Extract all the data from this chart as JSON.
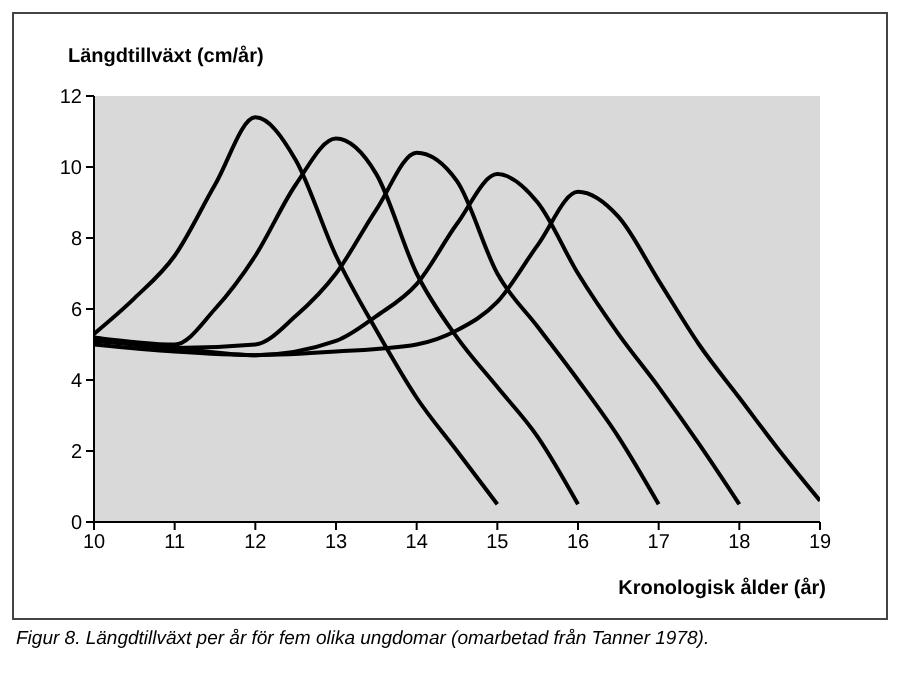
{
  "chart_data": {
    "type": "line",
    "ylabel": "Längdtillväxt (cm/år)",
    "xlabel": "Kronologisk ålder (år)",
    "annotations": [
      "Figur 8. Längdtillväxt per år för fem olika ungdomar (omarbetad från Tanner 1978)."
    ],
    "xlim": [
      10,
      19
    ],
    "xticks": [
      10,
      11,
      12,
      13,
      14,
      15,
      16,
      17,
      18,
      19
    ],
    "ylim": [
      0,
      12
    ],
    "yticks": [
      0,
      2,
      4,
      6,
      8,
      10,
      12
    ],
    "grid": false,
    "marker": "none",
    "line_style": "solid",
    "series": [
      {
        "color": "#000000",
        "x": [
          10,
          10.5,
          11,
          11.5,
          12,
          12.5,
          13,
          13.5,
          14,
          14.5,
          15
        ],
        "values": [
          5.3,
          6.3,
          7.5,
          9.5,
          11.4,
          10.2,
          7.5,
          5.4,
          3.5,
          2,
          0.5
        ]
      },
      {
        "color": "#000000",
        "x": [
          10,
          11,
          11.5,
          12,
          12.5,
          13,
          13.5,
          14,
          14.5,
          15,
          15.5,
          16
        ],
        "values": [
          5.2,
          5,
          6,
          7.5,
          9.5,
          10.8,
          9.8,
          7,
          5.2,
          3.8,
          2.4,
          0.5
        ]
      },
      {
        "color": "#000000",
        "x": [
          10,
          11,
          12,
          12.5,
          13,
          13.5,
          14,
          14.5,
          15,
          15.5,
          16,
          16.5,
          17
        ],
        "values": [
          5.2,
          4.9,
          5,
          5.8,
          7,
          8.8,
          10.4,
          9.6,
          7,
          5.5,
          4,
          2.4,
          0.5
        ]
      },
      {
        "color": "#000000",
        "x": [
          10,
          11,
          12,
          13,
          13.5,
          14,
          14.5,
          15,
          15.5,
          16,
          16.5,
          17,
          17.5,
          18
        ],
        "values": [
          5.1,
          4.9,
          4.7,
          5.1,
          5.8,
          6.7,
          8.4,
          9.8,
          9,
          7,
          5.3,
          3.8,
          2.2,
          0.5
        ]
      },
      {
        "color": "#000000",
        "x": [
          10,
          11,
          12,
          13,
          14,
          14.5,
          15,
          15.5,
          16,
          16.5,
          17,
          17.5,
          18,
          18.5,
          19
        ],
        "values": [
          5,
          4.8,
          4.7,
          4.8,
          5,
          5.4,
          6.2,
          7.8,
          9.3,
          8.6,
          6.8,
          5,
          3.5,
          2,
          0.6
        ]
      }
    ]
  }
}
